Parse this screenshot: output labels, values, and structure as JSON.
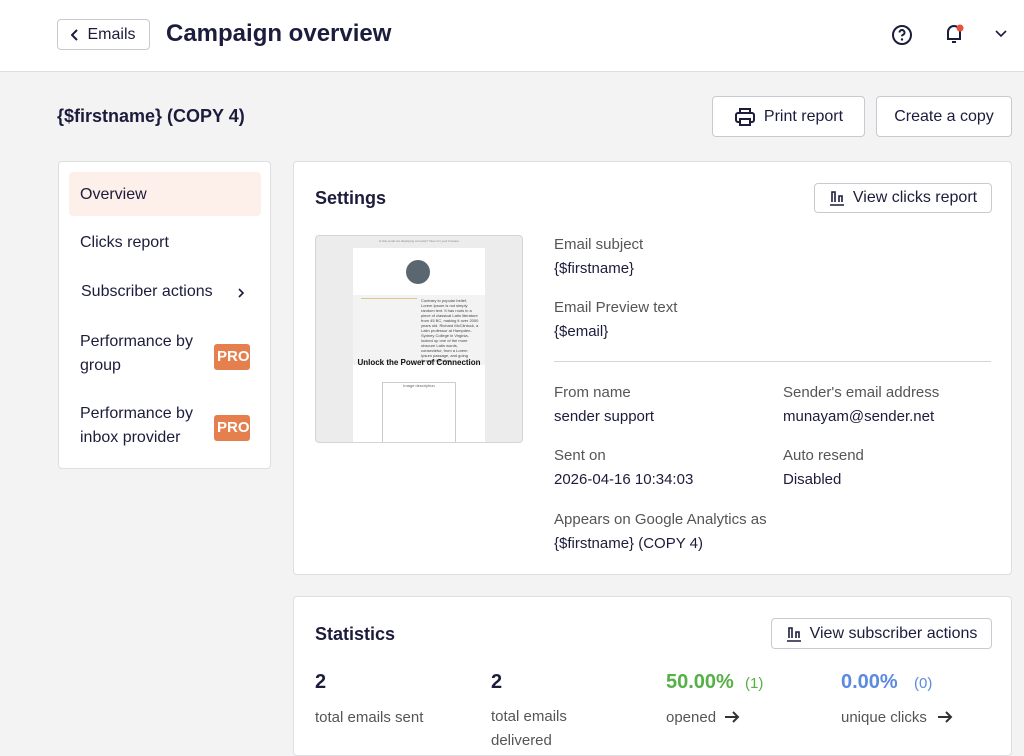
{
  "header": {
    "back": "Emails",
    "title": "Campaign overview"
  },
  "campaign": {
    "name": "{$firstname} (COPY 4)",
    "actions": [
      "Print report",
      "Create a copy"
    ]
  },
  "sidebar": {
    "items": [
      "Overview",
      "Clicks report",
      "Subscriber actions",
      "Performance by group",
      "Performance by inbox provider"
    ],
    "badge": "PRO"
  },
  "settings": {
    "title": "Settings",
    "button": "View clicks report",
    "preview": {
      "top": "Is this email not displaying correctly? View it in your browser",
      "text": "Contrary to popular belief, Lorem Ipsum is not simply random text. It has roots in a piece of classical Latin literature from 45 BC, making it over 2000 years old. Richard McClintock, a Latin professor at Hampden-Sydney College in Virginia, looked up one of the more obscure Latin words, consectetur, from a Lorem Ipsum passage, and going through the cites",
      "heading": "Unlock the Power of Connection",
      "image": "Image description"
    },
    "fields": [
      {
        "label": "Email subject",
        "value": "{$firstname}"
      },
      {
        "label": "Email Preview text",
        "value": "{$email}"
      },
      {
        "label": "From name",
        "value": "sender support"
      },
      {
        "label": "Sender's email address",
        "value": "munayam@sender.net"
      },
      {
        "label": "Sent on",
        "value": "2026-04-16 10:34:03"
      },
      {
        "label": "Auto resend",
        "value": "Disabled"
      },
      {
        "label": "Appears on Google Analytics as",
        "value": "{$firstname} (COPY 4)"
      }
    ]
  },
  "statistics": {
    "title": "Statistics",
    "button": "View subscriber actions",
    "items": [
      {
        "value": "2",
        "label": "total emails sent"
      },
      {
        "value": "2",
        "label": "total emails delivered"
      },
      {
        "value": "50.00%",
        "count": "(1)",
        "label": "opened"
      },
      {
        "value": "0.00%",
        "count": "(0)",
        "label": "unique clicks"
      }
    ]
  }
}
